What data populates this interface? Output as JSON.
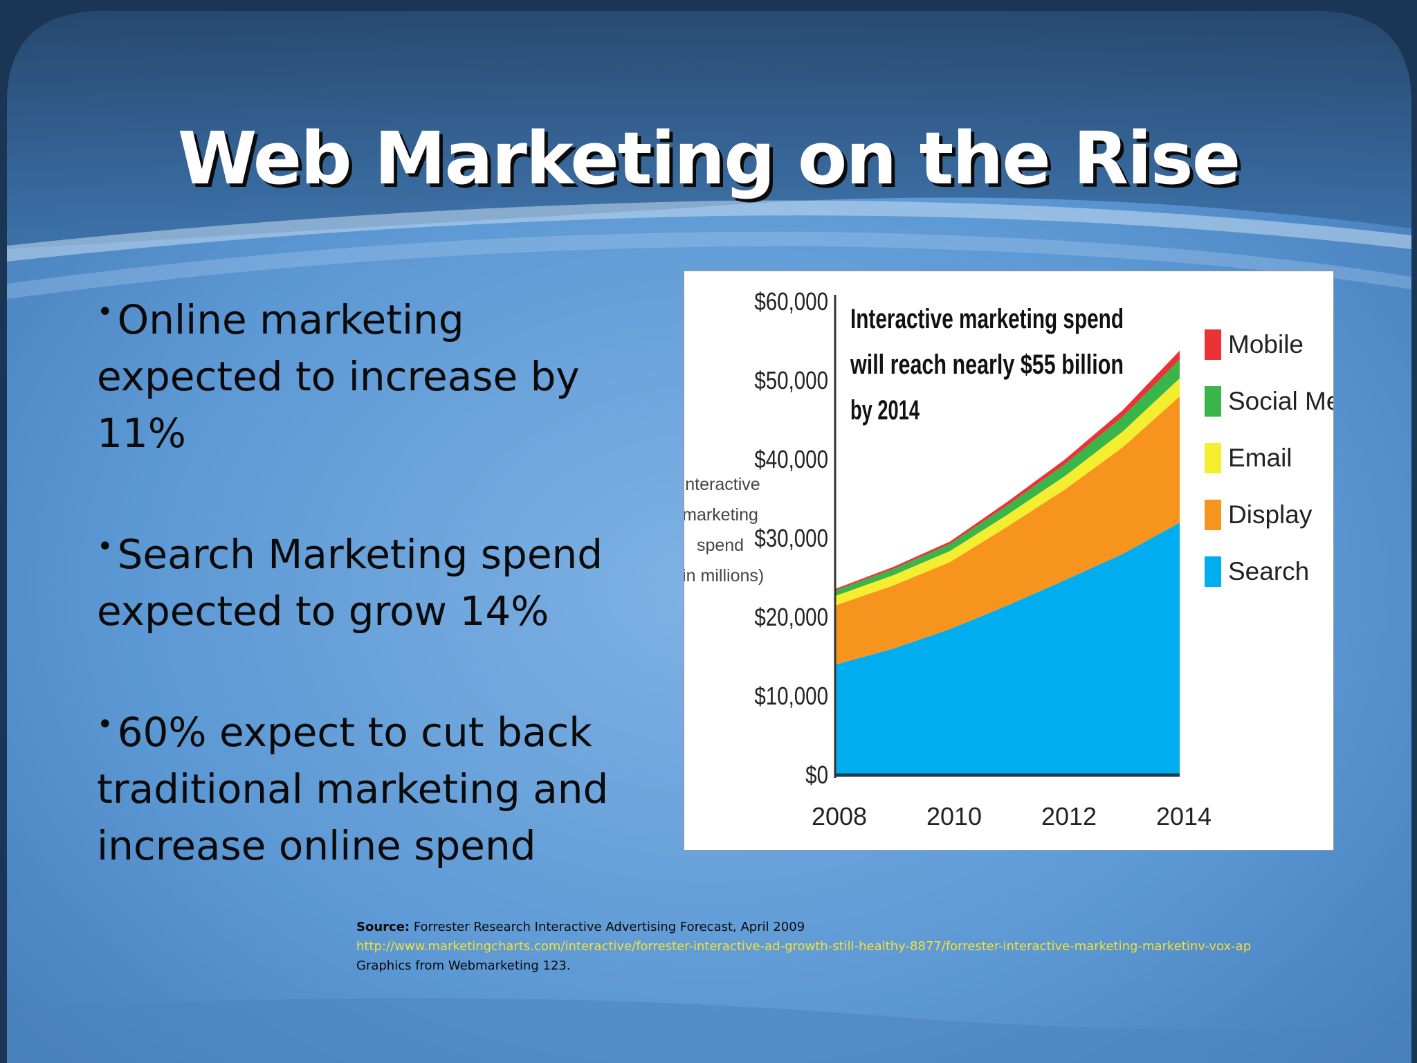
{
  "slide": {
    "title": "Web Marketing on the Rise",
    "bullets": [
      {
        "text": "Online marketing expected to increase by 11%"
      },
      {
        "text": "Search Marketing spend expected to grow 14%"
      },
      {
        "text": "60% expect to cut back traditional marketing and increase online spend"
      }
    ],
    "source": {
      "label": "Source:",
      "text": "Forrester Research Interactive Advertising Forecast, April 2009",
      "url": "http://www.marketingcharts.com/interactive/forrester-interactive-ad-growth-still-healthy-8877/forrester-interactive-marketing-marketinv-vox-ap",
      "credit": "Graphics from Webmarketing 123."
    }
  },
  "chart_data": {
    "type": "area",
    "stacked": true,
    "title_lines": [
      "Interactive marketing spend",
      "will reach nearly $55 billion",
      "by 2014"
    ],
    "ylabel_lines": [
      "Interactive",
      "marketing",
      "spend",
      "(in millions)"
    ],
    "x": [
      2008,
      2009,
      2010,
      2011,
      2012,
      2013,
      2014
    ],
    "xticks": [
      "2008",
      "2010",
      "2012",
      "2014"
    ],
    "yticks": [
      "$0",
      "$10,000",
      "$20,000",
      "$30,000",
      "$40,000",
      "$50,000",
      "$60,000"
    ],
    "ylim": [
      0,
      60000
    ],
    "legend_position": "right",
    "series": [
      {
        "name": "Search",
        "color": "#00aeef",
        "values": [
          14000,
          16000,
          18500,
          21500,
          24700,
          28000,
          32000
        ]
      },
      {
        "name": "Display",
        "color": "#f7941d",
        "values": [
          7500,
          8000,
          8500,
          10000,
          11500,
          13500,
          16000
        ]
      },
      {
        "name": "Email",
        "color": "#f5ee30",
        "values": [
          1200,
          1300,
          1400,
          1500,
          1700,
          2000,
          2300
        ]
      },
      {
        "name": "Social Media",
        "color": "#39b54a",
        "values": [
          700,
          800,
          900,
          1200,
          1500,
          1900,
          2400
        ]
      },
      {
        "name": "Mobile",
        "color": "#ed3237",
        "values": [
          200,
          250,
          300,
          450,
          600,
          800,
          1100
        ]
      }
    ]
  }
}
